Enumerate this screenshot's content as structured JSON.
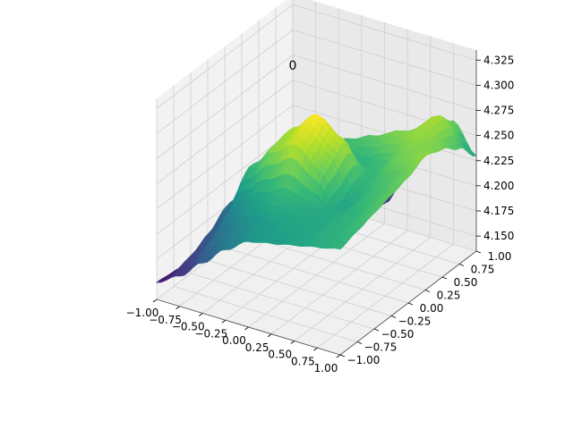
{
  "chart_data": {
    "type": "surface3d",
    "title": "0",
    "colormap": "viridis",
    "grid": true,
    "x": {
      "label": "",
      "range": [
        -1.0,
        1.0
      ],
      "ticks": [
        "−1.00",
        "−0.75",
        "−0.50",
        "−0.25",
        "0.00",
        "0.25",
        "0.50",
        "0.75",
        "1.00"
      ]
    },
    "y": {
      "label": "",
      "range": [
        -1.0,
        1.0
      ],
      "ticks": [
        "−1.00",
        "−0.75",
        "−0.50",
        "−0.25",
        "0.00",
        "0.25",
        "0.50",
        "0.75",
        "1.00"
      ]
    },
    "z": {
      "label": "",
      "range": [
        4.135,
        4.335
      ],
      "ticks": [
        "4.150",
        "4.175",
        "4.200",
        "4.225",
        "4.250",
        "4.275",
        "4.300",
        "4.325"
      ]
    },
    "z_grid_x": [
      -1.0,
      -0.75,
      -0.5,
      -0.25,
      0.0,
      0.25,
      0.5,
      0.75,
      1.0
    ],
    "z_grid_y": [
      -1.0,
      -0.75,
      -0.5,
      -0.25,
      0.0,
      0.25,
      0.5,
      0.75,
      1.0
    ],
    "z_values": [
      [
        4.152,
        4.165,
        4.185,
        4.205,
        4.22,
        4.225,
        4.23,
        4.235,
        4.24
      ],
      [
        4.15,
        4.175,
        4.2,
        4.215,
        4.225,
        4.23,
        4.232,
        4.238,
        4.245
      ],
      [
        4.145,
        4.185,
        4.215,
        4.23,
        4.24,
        4.235,
        4.233,
        4.24,
        4.25
      ],
      [
        4.14,
        4.2,
        4.245,
        4.27,
        4.285,
        4.265,
        4.23,
        4.245,
        4.255
      ],
      [
        4.15,
        4.19,
        4.235,
        4.275,
        4.295,
        4.28,
        4.24,
        4.25,
        4.26
      ],
      [
        4.165,
        4.185,
        4.21,
        4.23,
        4.25,
        4.235,
        4.245,
        4.262,
        4.268
      ],
      [
        4.17,
        4.2,
        4.22,
        4.235,
        4.245,
        4.255,
        4.265,
        4.27,
        4.262
      ],
      [
        4.175,
        4.21,
        4.205,
        4.185,
        4.16,
        4.225,
        4.255,
        4.275,
        4.25
      ],
      [
        4.18,
        4.195,
        4.175,
        4.16,
        4.155,
        4.19,
        4.23,
        4.258,
        4.23
      ]
    ]
  }
}
